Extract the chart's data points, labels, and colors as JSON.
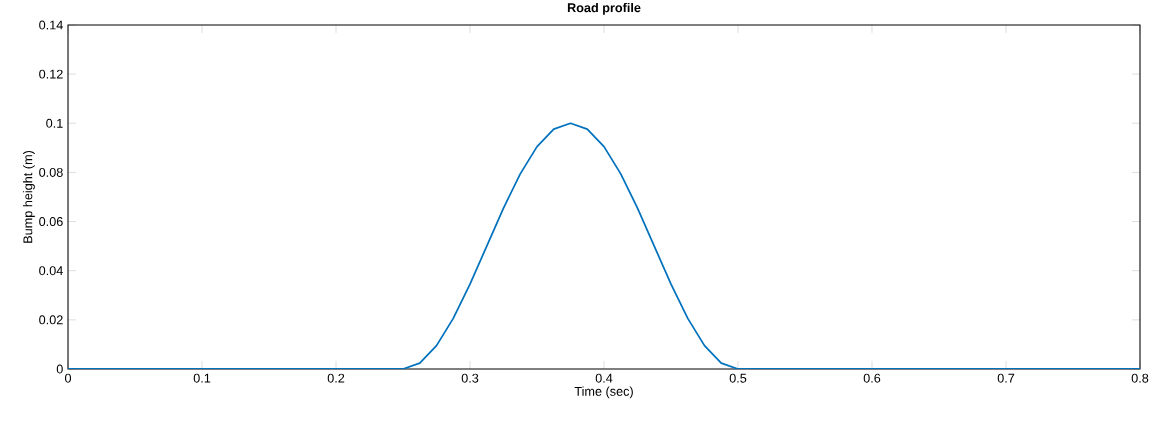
{
  "chart_data": {
    "type": "line",
    "title": "Road profile",
    "xlabel": "Time (sec)",
    "ylabel": "Bump height (m)",
    "x": [
      0,
      0.25,
      0.2625,
      0.275,
      0.2875,
      0.3,
      0.3125,
      0.325,
      0.3375,
      0.35,
      0.3625,
      0.375,
      0.3875,
      0.4,
      0.4125,
      0.425,
      0.4375,
      0.45,
      0.4625,
      0.475,
      0.4875,
      0.5,
      0.8
    ],
    "series": [
      {
        "color": "#0072bd",
        "values": [
          0,
          0,
          0.0024,
          0.0095,
          0.0206,
          0.0345,
          0.05,
          0.0655,
          0.0794,
          0.0905,
          0.0976,
          0.1,
          0.0976,
          0.0905,
          0.0794,
          0.0655,
          0.05,
          0.0345,
          0.0206,
          0.0095,
          0.0024,
          0,
          0
        ]
      }
    ],
    "xlim": [
      0,
      0.8
    ],
    "ylim": [
      0,
      0.14
    ],
    "xticks": [
      0,
      0.1,
      0.2,
      0.3,
      0.4,
      0.5,
      0.6,
      0.7,
      0.8
    ],
    "yticks": [
      0,
      0.02,
      0.04,
      0.06,
      0.08,
      0.1,
      0.12,
      0.14
    ],
    "grid": false,
    "marker": "none",
    "line_style": "solid"
  }
}
